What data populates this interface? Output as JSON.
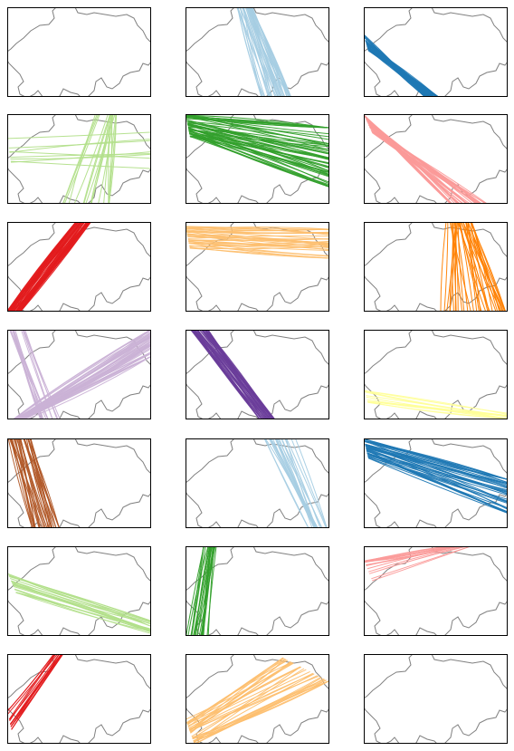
{
  "panels": [
    {
      "color": null
    },
    {
      "color": "#a6cee3"
    },
    {
      "color": "#1f78b4"
    },
    {
      "color": "#b2df8a"
    },
    {
      "color": "#33a02c"
    },
    {
      "color": "#fb9a99"
    },
    {
      "color": "#e31a1c"
    },
    {
      "color": "#fdbf6f"
    },
    {
      "color": "#ff7f00"
    },
    {
      "color": "#cab2d6"
    },
    {
      "color": "#6a3d9a"
    },
    {
      "color": "#ffff99"
    },
    {
      "color": "#b15928"
    },
    {
      "color": "#a6cee3"
    },
    {
      "color": "#1f78b4"
    },
    {
      "color": "#b2df8a"
    },
    {
      "color": "#33a02c"
    },
    {
      "color": "#fb9a99"
    },
    {
      "color": "#e31a1c"
    },
    {
      "color": "#fdbf6f"
    },
    {
      "color": null
    }
  ]
}
